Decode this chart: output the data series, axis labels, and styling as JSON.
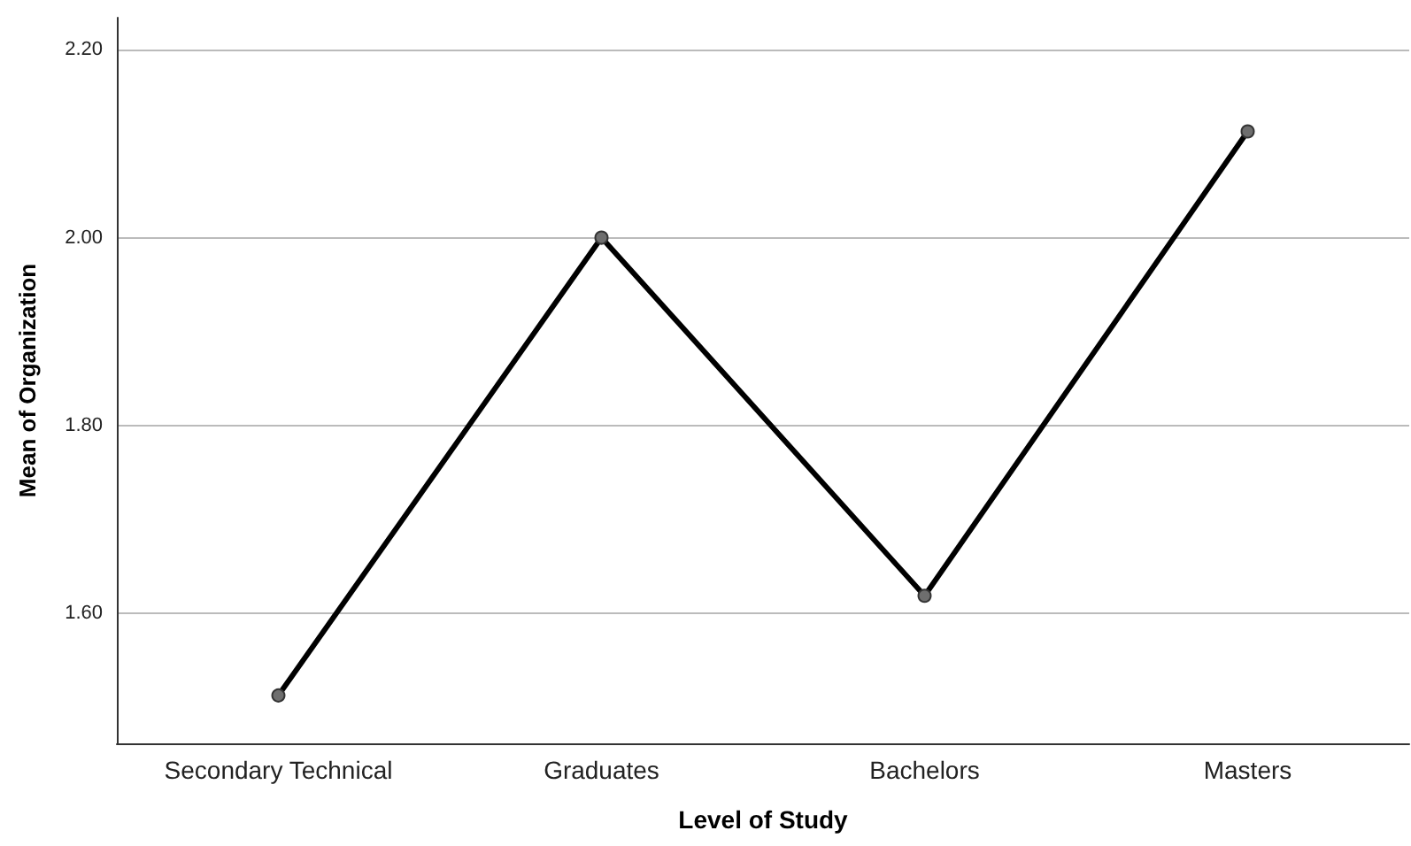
{
  "chart_data": {
    "type": "line",
    "xlabel": "Level of Study",
    "ylabel": "Mean of Organization",
    "categories": [
      "Secondary Technical",
      "Graduates",
      "Bachelors",
      "Masters"
    ],
    "series": [
      {
        "color": "#000000",
        "values": [
          1.513,
          2.0,
          1.619,
          2.113
        ]
      }
    ],
    "ylim": [
      1.462,
      2.234
    ],
    "yticks": [
      {
        "value": 1.6,
        "label": "1.60"
      },
      {
        "value": 1.8,
        "label": "1.80"
      },
      {
        "value": 2.0,
        "label": "2.00"
      },
      {
        "value": 2.2,
        "label": "2.20"
      }
    ],
    "grid": "y",
    "marker": "circle",
    "line_style": "solid"
  }
}
